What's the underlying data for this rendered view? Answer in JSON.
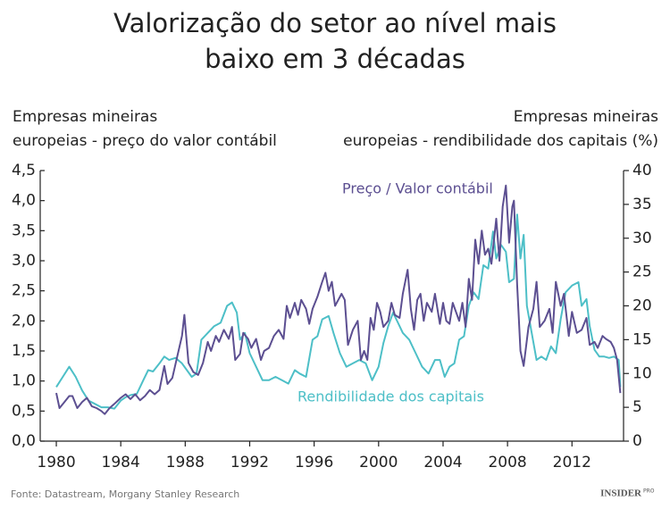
{
  "chart_data": {
    "type": "line",
    "title": [
      "Valorização do setor ao nível mais",
      "baixo em 3 décadas"
    ],
    "ylabel": [
      "Empresas mineiras",
      "europeias - preço do valor contábil"
    ],
    "y2label": [
      "Empresas mineiras",
      "europeias - rendibilidade dos capitais (%)"
    ],
    "xlim": [
      1979,
      2015.2
    ],
    "xticks": [
      1980,
      1984,
      1988,
      1992,
      1996,
      2000,
      2004,
      2008,
      2012
    ],
    "ylim": [
      0,
      4.5
    ],
    "yticks": [
      {
        "value": 0,
        "label": "0,0"
      },
      {
        "value": 0.5,
        "label": "0,5"
      },
      {
        "value": 1,
        "label": "1,0"
      },
      {
        "value": 1.5,
        "label": "1,5"
      },
      {
        "value": 2,
        "label": "2,0"
      },
      {
        "value": 2.5,
        "label": "2,5"
      },
      {
        "value": 3,
        "label": "3,0"
      },
      {
        "value": 3.5,
        "label": "3,5"
      },
      {
        "value": 4,
        "label": "4,0"
      },
      {
        "value": 4.5,
        "label": "4,5"
      }
    ],
    "y2lim": [
      0,
      40
    ],
    "y2ticks": [
      0,
      5,
      10,
      15,
      20,
      25,
      30,
      35,
      40
    ],
    "series": [
      {
        "name": "Rendibilidade dos capitais",
        "color": "#4dbfc7",
        "axis": "y2",
        "x": [
          1980.0,
          1980.4,
          1980.8,
          1981.2,
          1981.6,
          1982.0,
          1982.4,
          1982.8,
          1983.2,
          1983.6,
          1984.0,
          1984.3,
          1984.6,
          1985.0,
          1985.4,
          1985.7,
          1986.0,
          1986.4,
          1986.7,
          1987.0,
          1987.4,
          1987.8,
          1988.1,
          1988.4,
          1988.7,
          1989.0,
          1989.4,
          1989.8,
          1990.2,
          1990.6,
          1990.9,
          1991.2,
          1991.4,
          1991.7,
          1992.0,
          1992.4,
          1992.8,
          1993.2,
          1993.6,
          1994.0,
          1994.4,
          1994.8,
          1995.1,
          1995.5,
          1995.9,
          1996.2,
          1996.5,
          1996.9,
          1997.2,
          1997.6,
          1998.0,
          1998.4,
          1998.8,
          1999.2,
          1999.6,
          2000.0,
          2000.3,
          2000.6,
          2000.9,
          2001.2,
          2001.5,
          2001.9,
          2002.3,
          2002.7,
          2003.1,
          2003.5,
          2003.8,
          2004.1,
          2004.4,
          2004.7,
          2005.0,
          2005.3,
          2005.6,
          2005.9,
          2006.2,
          2006.5,
          2006.8,
          2007.1,
          2007.3,
          2007.6,
          2007.9,
          2008.1,
          2008.4,
          2008.6,
          2008.8,
          2009.0,
          2009.2,
          2009.5,
          2009.8,
          2010.1,
          2010.4,
          2010.7,
          2011.0,
          2011.3,
          2011.6,
          2012.0,
          2012.4,
          2012.6,
          2012.9,
          2013.1,
          2013.4,
          2013.7,
          2014.0,
          2014.3,
          2014.6,
          2014.9,
          2015.0
        ],
        "values": [
          8,
          9.5,
          11,
          9.5,
          7.5,
          6,
          5.5,
          5,
          5,
          4.8,
          6,
          6.5,
          6.8,
          7,
          9,
          10.5,
          10.3,
          11.5,
          12.5,
          12,
          12.3,
          11.5,
          10.5,
          9.5,
          10,
          15,
          16,
          17,
          17.5,
          20,
          20.5,
          19,
          15,
          16,
          13,
          11,
          9,
          9,
          9.5,
          9,
          8.5,
          10.5,
          10,
          9.5,
          15,
          15.5,
          18,
          18.5,
          16,
          13,
          11,
          11.5,
          12,
          11.5,
          9,
          11,
          14.5,
          17,
          19,
          17.5,
          16,
          15,
          13,
          11,
          10,
          12,
          12,
          9.5,
          11,
          11.5,
          15,
          15.5,
          20,
          22,
          21,
          26,
          25.5,
          31,
          27,
          29,
          28,
          23.5,
          24,
          33.5,
          27,
          30.5,
          20,
          16,
          12,
          12.5,
          12,
          14,
          13,
          18,
          22,
          23,
          23.5,
          20,
          21,
          17,
          13.5,
          12.5,
          12.5,
          12.3,
          12.5,
          12,
          8
        ]
      },
      {
        "name": "Preço / Valor contábil",
        "color": "#5c4f91",
        "x": [
          1980.0,
          1980.2,
          1980.5,
          1980.8,
          1981.0,
          1981.3,
          1981.6,
          1981.9,
          1982.2,
          1982.5,
          1982.8,
          1983.0,
          1983.3,
          1983.6,
          1984.0,
          1984.3,
          1984.6,
          1984.9,
          1985.2,
          1985.5,
          1985.8,
          1986.1,
          1986.4,
          1986.7,
          1986.9,
          1987.2,
          1987.5,
          1987.8,
          1987.95,
          1988.2,
          1988.5,
          1988.8,
          1989.1,
          1989.4,
          1989.6,
          1989.9,
          1990.1,
          1990.4,
          1990.7,
          1990.9,
          1991.1,
          1991.4,
          1991.6,
          1991.9,
          1992.1,
          1992.4,
          1992.7,
          1992.9,
          1993.2,
          1993.5,
          1993.8,
          1994.1,
          1994.3,
          1994.5,
          1994.8,
          1995.0,
          1995.2,
          1995.5,
          1995.7,
          1995.9,
          1996.2,
          1996.5,
          1996.7,
          1996.9,
          1997.1,
          1997.3,
          1997.5,
          1997.7,
          1997.9,
          1998.1,
          1998.4,
          1998.7,
          1998.9,
          1999.1,
          1999.3,
          1999.5,
          1999.7,
          1999.9,
          2000.1,
          2000.3,
          2000.6,
          2000.8,
          2001.0,
          2001.3,
          2001.5,
          2001.8,
          2002.0,
          2002.2,
          2002.4,
          2002.6,
          2002.8,
          2003.0,
          2003.3,
          2003.5,
          2003.8,
          2004.0,
          2004.2,
          2004.4,
          2004.6,
          2004.8,
          2005.0,
          2005.2,
          2005.4,
          2005.6,
          2005.8,
          2006.0,
          2006.2,
          2006.4,
          2006.6,
          2006.8,
          2007.0,
          2007.3,
          2007.5,
          2007.7,
          2007.9,
          2008.1,
          2008.3,
          2008.4,
          2008.6,
          2008.8,
          2009.0,
          2009.3,
          2009.6,
          2009.8,
          2010.0,
          2010.3,
          2010.6,
          2010.8,
          2011.0,
          2011.3,
          2011.5,
          2011.8,
          2012.0,
          2012.3,
          2012.6,
          2012.9,
          2013.1,
          2013.4,
          2013.6,
          2013.9,
          2014.1,
          2014.4,
          2014.6,
          2014.8,
          2015.0
        ],
        "values": [
          0.8,
          0.55,
          0.65,
          0.75,
          0.75,
          0.55,
          0.65,
          0.72,
          0.58,
          0.55,
          0.5,
          0.45,
          0.55,
          0.62,
          0.72,
          0.78,
          0.7,
          0.78,
          0.68,
          0.75,
          0.85,
          0.78,
          0.85,
          1.25,
          0.95,
          1.05,
          1.4,
          1.75,
          2.1,
          1.3,
          1.15,
          1.1,
          1.3,
          1.65,
          1.5,
          1.75,
          1.65,
          1.85,
          1.7,
          1.9,
          1.35,
          1.45,
          1.8,
          1.7,
          1.55,
          1.7,
          1.35,
          1.5,
          1.55,
          1.75,
          1.85,
          1.7,
          2.25,
          2.05,
          2.3,
          2.1,
          2.35,
          2.2,
          1.95,
          2.2,
          2.4,
          2.65,
          2.8,
          2.5,
          2.65,
          2.25,
          2.35,
          2.45,
          2.35,
          1.6,
          1.85,
          2.0,
          1.35,
          1.5,
          1.35,
          2.05,
          1.85,
          2.3,
          2.15,
          1.9,
          2.0,
          2.3,
          2.1,
          2.05,
          2.45,
          2.85,
          2.2,
          1.85,
          2.35,
          2.45,
          2.0,
          2.3,
          2.15,
          2.45,
          1.95,
          2.3,
          2.0,
          1.95,
          2.3,
          2.15,
          2.0,
          2.3,
          1.9,
          2.7,
          2.35,
          3.35,
          2.95,
          3.5,
          3.1,
          3.2,
          2.95,
          3.7,
          3.0,
          3.9,
          4.25,
          3.3,
          3.9,
          4.0,
          2.6,
          1.5,
          1.25,
          1.9,
          2.2,
          2.65,
          1.9,
          2.0,
          2.2,
          1.8,
          2.65,
          2.25,
          2.45,
          1.75,
          2.15,
          1.8,
          1.85,
          2.05,
          1.6,
          1.65,
          1.55,
          1.75,
          1.7,
          1.65,
          1.55,
          1.35,
          0.8
        ]
      }
    ],
    "source": "Fonte: Datastream, Morgany Stanley Research",
    "logo": "INSIDER",
    "logo_badge": "PRO"
  }
}
